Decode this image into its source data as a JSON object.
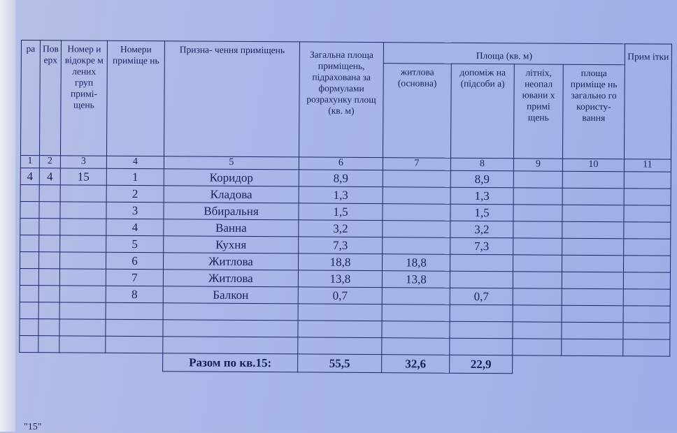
{
  "table": {
    "headers": {
      "c1": "ра",
      "c2": "Пов ерх",
      "c3": "Номер и відокре м лених груп примі- щень",
      "c4": "Номери приміще нь",
      "c5": "Призна- чення приміщень",
      "c6": "Загальна площа приміщень, підрахована за формулами розрахунку площ (кв. м)",
      "group": "Площа (кв. м)",
      "c7": "житлова (основна)",
      "c8": "допоміж на (підсоби а)",
      "c9": "літніх, неопал ювани х примі щень",
      "c10": "площа приміще нь загально го користу- вання",
      "c11": "Прим ітки"
    },
    "column_numbers": [
      "1",
      "2",
      "3",
      "4",
      "5",
      "6",
      "7",
      "8",
      "9",
      "10",
      "11"
    ],
    "rows": [
      [
        "4",
        "4",
        "15",
        "1",
        "Коридор",
        "8,9",
        "",
        "8,9",
        "",
        "",
        ""
      ],
      [
        "",
        "",
        "",
        "2",
        "Кладова",
        "1,3",
        "",
        "1,3",
        "",
        "",
        ""
      ],
      [
        "",
        "",
        "",
        "3",
        "Вбиральня",
        "1,5",
        "",
        "1,5",
        "",
        "",
        ""
      ],
      [
        "",
        "",
        "",
        "4",
        "Ванна",
        "3,2",
        "",
        "3,2",
        "",
        "",
        ""
      ],
      [
        "",
        "",
        "",
        "5",
        "Кухня",
        "7,3",
        "",
        "7,3",
        "",
        "",
        ""
      ],
      [
        "",
        "",
        "",
        "6",
        "Житлова",
        "18,8",
        "18,8",
        "",
        "",
        "",
        ""
      ],
      [
        "",
        "",
        "",
        "7",
        "Житлова",
        "13,8",
        "13,8",
        "",
        "",
        "",
        ""
      ],
      [
        "",
        "",
        "",
        "8",
        "Балкон",
        "0,7",
        "",
        "0,7",
        "",
        "",
        ""
      ],
      [
        "",
        "",
        "",
        "",
        "",
        "",
        "",
        "",
        "",
        "",
        ""
      ],
      [
        "",
        "",
        "",
        "",
        "",
        "",
        "",
        "",
        "",
        "",
        ""
      ],
      [
        "",
        "",
        "",
        "",
        "",
        "",
        "",
        "",
        "",
        "",
        ""
      ]
    ],
    "total": {
      "label": "Разом по кв.15:",
      "total_area": "55,5",
      "living": "32,6",
      "auxiliary": "22,9"
    }
  },
  "footer_caption": "\"15\""
}
